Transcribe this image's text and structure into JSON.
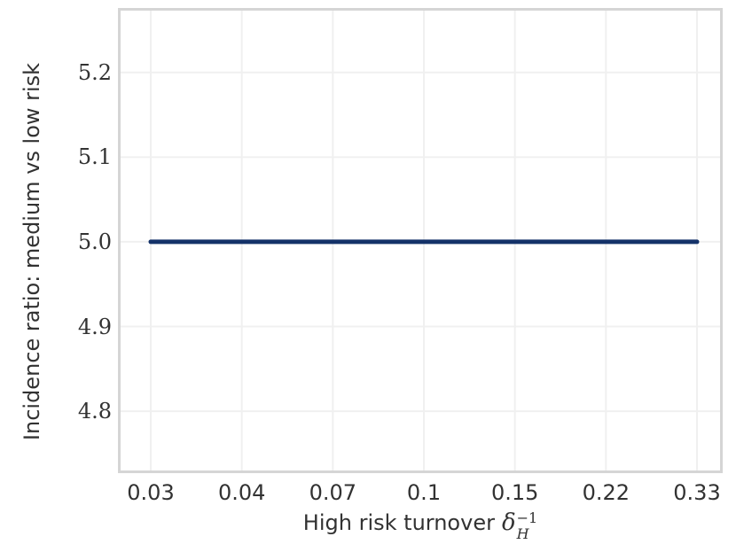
{
  "chart_data": {
    "type": "line",
    "title": "",
    "xlabel": {
      "text": "High risk turnover",
      "math_symbol": "δ",
      "math_subscript": "H",
      "math_superscript": "−1"
    },
    "ylabel": "Incidence ratio: medium vs low risk",
    "categories": [
      "0.03",
      "0.04",
      "0.07",
      "0.1",
      "0.15",
      "0.22",
      "0.33"
    ],
    "x_values": [
      0.03,
      0.04,
      0.07,
      0.1,
      0.15,
      0.22,
      0.33
    ],
    "series": [
      {
        "values": [
          5.0,
          5.0,
          5.0,
          5.0,
          5.0,
          5.0,
          5.0
        ],
        "color": "#143269"
      }
    ],
    "yticks": [
      4.8,
      4.9,
      5.0,
      5.1,
      5.2
    ],
    "ytick_labels": [
      "4.8",
      "4.9",
      "5.0",
      "5.1",
      "5.2"
    ],
    "ylim": [
      4.73,
      5.273
    ],
    "x_scale": "even-categorical",
    "grid": true,
    "legend": false,
    "colors": {
      "line": "#143269",
      "grid": "#f0f0f0",
      "spine": "#d5d5d5",
      "text": "#323232",
      "background": "#ffffff"
    }
  }
}
